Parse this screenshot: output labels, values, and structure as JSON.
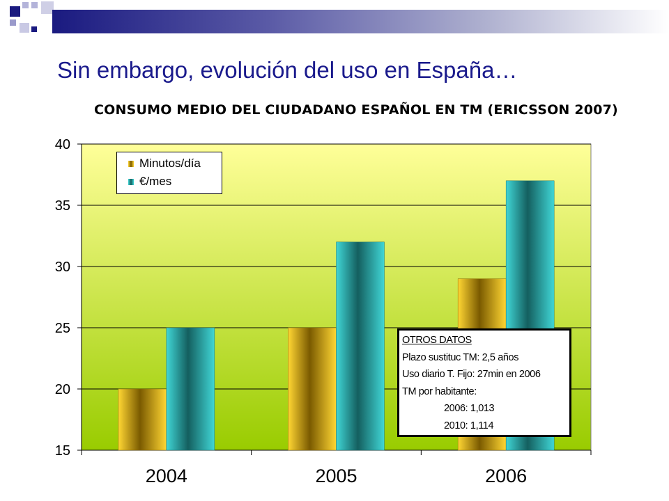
{
  "slide": {
    "title": "Sin embargo, evolución del uso en España…"
  },
  "colors": {
    "brand_navy": "#1a1a80",
    "series_minutes": "#c8a000",
    "series_euros": "#2bb8b8",
    "plot_bg_top": "#ffff99",
    "plot_bg_bottom": "#99cc00"
  },
  "chart_data": {
    "type": "bar",
    "title": "CONSUMO MEDIO DEL CIUDADANO ESPAÑOL EN TM (ERICSSON 2007)",
    "categories": [
      "2004",
      "2005",
      "2006"
    ],
    "series": [
      {
        "name": "Minutos/día",
        "values": [
          20,
          25,
          29
        ]
      },
      {
        "name": "€/mes",
        "values": [
          25,
          32,
          37
        ]
      }
    ],
    "ylim": [
      15,
      40
    ],
    "yticks": [
      "15",
      "20",
      "25",
      "30",
      "35",
      "40"
    ],
    "grid": true,
    "legend": "top-left"
  },
  "info_box": {
    "title": "OTROS DATOS",
    "lines": [
      "Plazo sustituc TM: 2,5 años",
      "Uso diario T. Fijo: 27min en 2006",
      "TM por habitante:",
      "2006: 1,013",
      "2010: 1,114"
    ]
  }
}
